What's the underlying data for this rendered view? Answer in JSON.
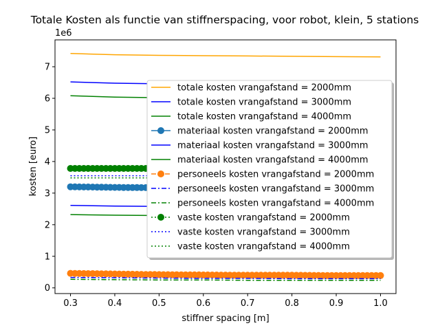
{
  "chart_data": {
    "type": "line",
    "title": "Totale Kosten als functie van stiffnerspacing, voor robot, klein, 5 stations",
    "xlabel": "stiffner spacing [m]",
    "ylabel": "kosten [euro]",
    "offset_text": "1e6",
    "xlim": [
      0.265,
      1.035
    ],
    "ylim": [
      -0.18,
      7.85
    ],
    "xticks": [
      0.3,
      0.4,
      0.5,
      0.6,
      0.7,
      0.8,
      0.9,
      1.0
    ],
    "xtick_labels": [
      "0.3",
      "0.4",
      "0.5",
      "0.6",
      "0.7",
      "0.8",
      "0.9",
      "1.0"
    ],
    "yticks": [
      0,
      1,
      2,
      3,
      4,
      5,
      6,
      7
    ],
    "ytick_labels": [
      "0",
      "1",
      "2",
      "3",
      "4",
      "5",
      "6",
      "7"
    ],
    "y_unit": 1000000,
    "grid": false,
    "legend_position": "center-right",
    "x": [
      0.3,
      0.4,
      0.5,
      0.6,
      0.7,
      0.8,
      0.9,
      1.0
    ],
    "series": [
      {
        "name": "totale kosten vrangafstand = 2000mm",
        "color": "#ffa500",
        "linestyle": "solid",
        "marker": "none",
        "values": [
          7.42,
          7.38,
          7.36,
          7.35,
          7.34,
          7.33,
          7.32,
          7.31
        ]
      },
      {
        "name": "totale kosten vrangafstand = 3000mm",
        "color": "#0000ff",
        "linestyle": "solid",
        "marker": "none",
        "values": [
          6.52,
          6.48,
          6.46,
          6.45,
          6.44,
          6.43,
          6.42,
          6.42
        ]
      },
      {
        "name": "totale kosten vrangafstand = 4000mm",
        "color": "#008000",
        "linestyle": "solid",
        "marker": "none",
        "values": [
          6.08,
          6.04,
          6.02,
          6.01,
          6.0,
          5.99,
          5.99,
          5.98
        ]
      },
      {
        "name": "materiaal kosten vrangafstand = 2000mm",
        "color": "#1f77b4",
        "linestyle": "solid",
        "marker": "circle",
        "values": [
          3.2,
          3.18,
          3.17,
          3.16,
          3.16,
          3.15,
          3.15,
          3.15
        ]
      },
      {
        "name": "materiaal kosten vrangafstand = 3000mm",
        "color": "#0000ff",
        "linestyle": "solid",
        "marker": "none",
        "values": [
          2.61,
          2.59,
          2.58,
          2.58,
          2.57,
          2.57,
          2.57,
          2.57
        ]
      },
      {
        "name": "materiaal kosten vrangafstand = 4000mm",
        "color": "#008000",
        "linestyle": "solid",
        "marker": "none",
        "values": [
          2.32,
          2.3,
          2.29,
          2.29,
          2.28,
          2.28,
          2.28,
          2.28
        ]
      },
      {
        "name": "personeels kosten vrangafstand = 2000mm",
        "color": "#ff7f0e",
        "linestyle": "dashed",
        "marker": "circle",
        "values": [
          0.46,
          0.44,
          0.42,
          0.41,
          0.4,
          0.4,
          0.39,
          0.39
        ]
      },
      {
        "name": "personeels kosten vrangafstand = 3000mm",
        "color": "#0000ff",
        "linestyle": "dashdot",
        "marker": "none",
        "values": [
          0.33,
          0.32,
          0.31,
          0.3,
          0.3,
          0.29,
          0.29,
          0.29
        ]
      },
      {
        "name": "personeels kosten vrangafstand = 4000mm",
        "color": "#008000",
        "linestyle": "dashdot",
        "marker": "none",
        "values": [
          0.27,
          0.26,
          0.25,
          0.25,
          0.24,
          0.24,
          0.24,
          0.24
        ]
      },
      {
        "name": "vaste kosten vrangafstand = 2000mm",
        "color": "#008000",
        "linestyle": "dotted",
        "marker": "circle",
        "values": [
          3.78,
          3.78,
          3.78,
          3.78,
          3.78,
          3.78,
          3.78,
          3.78
        ]
      },
      {
        "name": "vaste kosten vrangafstand = 3000mm",
        "color": "#0000ff",
        "linestyle": "dotted",
        "marker": "none",
        "values": [
          3.55,
          3.55,
          3.55,
          3.55,
          3.55,
          3.55,
          3.55,
          3.55
        ]
      },
      {
        "name": "vaste kosten vrangafstand = 4000mm",
        "color": "#008000",
        "linestyle": "dotted",
        "marker": "none",
        "values": [
          3.48,
          3.48,
          3.48,
          3.48,
          3.48,
          3.48,
          3.48,
          3.48
        ]
      }
    ]
  }
}
